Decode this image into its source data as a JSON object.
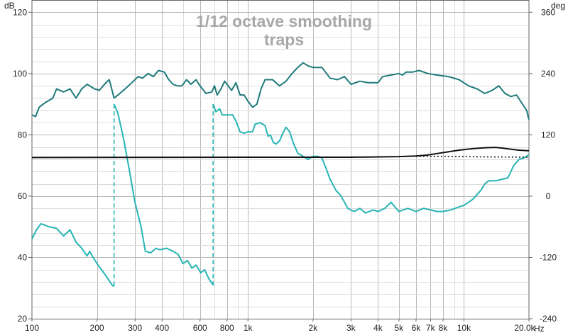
{
  "chart_data": {
    "type": "line",
    "title": [
      "1/12 octave smoothing",
      "traps"
    ],
    "x_scale": "log",
    "xlim": [
      100,
      20000
    ],
    "ylim_left": [
      20,
      124
    ],
    "ylim_right": [
      -240,
      384
    ],
    "left_unit": "dB",
    "right_unit": "deg",
    "x_unit": "Hz",
    "x_ticks": [
      {
        "v": 100,
        "t": "100"
      },
      {
        "v": 200,
        "t": "200"
      },
      {
        "v": 300,
        "t": "300"
      },
      {
        "v": 400,
        "t": "400"
      },
      {
        "v": 600,
        "t": "600"
      },
      {
        "v": 800,
        "t": "800"
      },
      {
        "v": 1000,
        "t": "1k"
      },
      {
        "v": 2000,
        "t": "2k"
      },
      {
        "v": 3000,
        "t": "3k"
      },
      {
        "v": 4000,
        "t": "4k"
      },
      {
        "v": 5000,
        "t": "5k"
      },
      {
        "v": 6000,
        "t": "6k"
      },
      {
        "v": 7000,
        "t": "7k"
      },
      {
        "v": 8000,
        "t": "8k"
      },
      {
        "v": 10000,
        "t": "10k"
      },
      {
        "v": 20000,
        "t": "20.0k"
      }
    ],
    "y_ticks_left": [
      {
        "v": 20,
        "t": "20"
      },
      {
        "v": 40,
        "t": "40"
      },
      {
        "v": 60,
        "t": "60"
      },
      {
        "v": 80,
        "t": "80"
      },
      {
        "v": 100,
        "t": "100"
      },
      {
        "v": 120,
        "t": "120"
      }
    ],
    "y_ticks_right": [
      {
        "v": -240,
        "t": "-240"
      },
      {
        "v": -120,
        "t": "-120"
      },
      {
        "v": 0,
        "t": "0"
      },
      {
        "v": 120,
        "t": "120"
      },
      {
        "v": 240,
        "t": "240"
      },
      {
        "v": 360,
        "t": "360"
      }
    ],
    "grid": true,
    "colors": {
      "spl": "#1f7a7a",
      "phase": "#27b4b4",
      "reference": "#111111",
      "grid_major": "#b8b8b8",
      "grid_minor": "#dcdcdc",
      "axis": "#666666",
      "title": "#a8a8a8"
    },
    "series": [
      {
        "key": "spl",
        "axis": "left",
        "style": "solid",
        "points": [
          [
            100,
            86.5
          ],
          [
            104,
            86
          ],
          [
            108,
            89
          ],
          [
            115,
            90.5
          ],
          [
            125,
            92
          ],
          [
            130,
            95
          ],
          [
            140,
            94
          ],
          [
            150,
            95
          ],
          [
            160,
            92
          ],
          [
            170,
            95
          ],
          [
            180,
            96.5
          ],
          [
            195,
            95
          ],
          [
            205,
            94.5
          ],
          [
            220,
            97
          ],
          [
            228,
            98
          ],
          [
            240,
            92
          ],
          [
            250,
            93
          ],
          [
            270,
            95
          ],
          [
            290,
            97
          ],
          [
            310,
            99
          ],
          [
            325,
            98.5
          ],
          [
            345,
            100
          ],
          [
            365,
            99
          ],
          [
            385,
            101
          ],
          [
            410,
            100.5
          ],
          [
            430,
            98
          ],
          [
            450,
            96.5
          ],
          [
            470,
            96
          ],
          [
            495,
            96
          ],
          [
            520,
            98
          ],
          [
            545,
            96.5
          ],
          [
            575,
            98
          ],
          [
            600,
            96
          ],
          [
            640,
            93.5
          ],
          [
            680,
            94
          ],
          [
            700,
            96
          ],
          [
            720,
            93
          ],
          [
            750,
            95
          ],
          [
            780,
            97.5
          ],
          [
            810,
            96
          ],
          [
            840,
            94.5
          ],
          [
            880,
            97
          ],
          [
            920,
            93
          ],
          [
            960,
            93
          ],
          [
            1000,
            91
          ],
          [
            1050,
            89
          ],
          [
            1100,
            90
          ],
          [
            1150,
            95
          ],
          [
            1200,
            98
          ],
          [
            1300,
            98
          ],
          [
            1400,
            96
          ],
          [
            1500,
            97.5
          ],
          [
            1600,
            100
          ],
          [
            1700,
            102
          ],
          [
            1800,
            103.5
          ],
          [
            1900,
            102.5
          ],
          [
            2000,
            102
          ],
          [
            2200,
            102
          ],
          [
            2400,
            98.5
          ],
          [
            2600,
            98
          ],
          [
            2800,
            99
          ],
          [
            3000,
            96.5
          ],
          [
            3300,
            97.5
          ],
          [
            3600,
            97
          ],
          [
            4000,
            97
          ],
          [
            4200,
            99
          ],
          [
            4600,
            99.5
          ],
          [
            5000,
            100
          ],
          [
            5200,
            99.5
          ],
          [
            5400,
            100.5
          ],
          [
            5800,
            100.5
          ],
          [
            6200,
            101
          ],
          [
            6800,
            100
          ],
          [
            7500,
            99.5
          ],
          [
            8500,
            99
          ],
          [
            9500,
            98
          ],
          [
            10500,
            96
          ],
          [
            11500,
            95
          ],
          [
            12500,
            93.5
          ],
          [
            13500,
            94.5
          ],
          [
            14500,
            96
          ],
          [
            15500,
            93.5
          ],
          [
            16500,
            92.5
          ],
          [
            17500,
            93
          ],
          [
            18500,
            90.5
          ],
          [
            19500,
            88
          ],
          [
            20000,
            85
          ]
        ]
      },
      {
        "key": "phase",
        "axis": "left",
        "style": "solid",
        "points": [
          [
            100,
            46
          ],
          [
            105,
            49
          ],
          [
            110,
            51
          ],
          [
            115,
            50.5
          ],
          [
            120,
            50
          ],
          [
            130,
            49.5
          ],
          [
            140,
            47
          ],
          [
            150,
            49
          ],
          [
            160,
            45
          ],
          [
            170,
            43
          ],
          [
            180,
            40.5
          ],
          [
            185,
            42
          ],
          [
            190,
            40.5
          ],
          [
            200,
            38
          ],
          [
            210,
            36
          ],
          [
            220,
            34
          ],
          [
            235,
            31
          ],
          [
            240,
            30.5
          ]
        ]
      },
      {
        "key": "phase",
        "axis": "left",
        "style": "solid",
        "points": [
          [
            240,
            90
          ],
          [
            250,
            87
          ],
          [
            265,
            79
          ],
          [
            280,
            70
          ],
          [
            300,
            58
          ],
          [
            320,
            50
          ],
          [
            335,
            42
          ],
          [
            355,
            41.5
          ],
          [
            375,
            43
          ],
          [
            390,
            42.5
          ],
          [
            420,
            43
          ],
          [
            450,
            42
          ],
          [
            475,
            41
          ],
          [
            500,
            38
          ],
          [
            525,
            39
          ],
          [
            550,
            36.5
          ],
          [
            575,
            37.5
          ],
          [
            605,
            35
          ],
          [
            630,
            36
          ],
          [
            660,
            33
          ],
          [
            690,
            31
          ]
        ]
      },
      {
        "key": "phase",
        "axis": "left",
        "style": "solid",
        "points": [
          [
            690,
            90
          ],
          [
            710,
            87.5
          ],
          [
            740,
            88.5
          ],
          [
            760,
            86.5
          ],
          [
            800,
            86.5
          ],
          [
            850,
            86.5
          ],
          [
            880,
            84.5
          ],
          [
            920,
            81
          ],
          [
            960,
            80.5
          ],
          [
            1000,
            81
          ],
          [
            1050,
            81
          ],
          [
            1080,
            83.5
          ],
          [
            1140,
            84
          ],
          [
            1200,
            83
          ],
          [
            1240,
            79.5
          ],
          [
            1270,
            80
          ],
          [
            1310,
            77.5
          ],
          [
            1350,
            77
          ],
          [
            1400,
            78
          ],
          [
            1450,
            80.5
          ],
          [
            1500,
            82.5
          ],
          [
            1560,
            81
          ],
          [
            1620,
            77.5
          ],
          [
            1700,
            74
          ],
          [
            1800,
            73
          ],
          [
            1900,
            72
          ],
          [
            2000,
            73
          ],
          [
            2100,
            73
          ],
          [
            2200,
            72.5
          ],
          [
            2300,
            69
          ],
          [
            2400,
            65.5
          ],
          [
            2550,
            62
          ],
          [
            2700,
            60
          ],
          [
            2900,
            56
          ],
          [
            3100,
            55
          ],
          [
            3300,
            56
          ],
          [
            3500,
            54.5
          ],
          [
            3800,
            55.5
          ],
          [
            4000,
            55
          ],
          [
            4300,
            56
          ],
          [
            4600,
            58
          ],
          [
            5000,
            55
          ],
          [
            5500,
            56
          ],
          [
            6000,
            55
          ],
          [
            6500,
            56
          ],
          [
            7000,
            55.5
          ],
          [
            7500,
            55
          ],
          [
            8000,
            55
          ],
          [
            8700,
            55.5
          ],
          [
            9500,
            56.5
          ],
          [
            10000,
            57
          ],
          [
            11000,
            59
          ],
          [
            12000,
            62
          ],
          [
            12500,
            64
          ],
          [
            13000,
            65
          ],
          [
            14000,
            65
          ],
          [
            15000,
            65.5
          ],
          [
            16000,
            66
          ],
          [
            17000,
            70
          ],
          [
            18000,
            72
          ],
          [
            19000,
            72.5
          ],
          [
            20000,
            73.5
          ]
        ]
      },
      {
        "key": "phase",
        "axis": "left",
        "style": "dashed",
        "points": [
          [
            240,
            90
          ],
          [
            240,
            30
          ]
        ]
      },
      {
        "key": "phase",
        "axis": "left",
        "style": "dashed",
        "points": [
          [
            690,
            90
          ],
          [
            690,
            30
          ]
        ]
      },
      {
        "key": "reference",
        "axis": "left",
        "style": "solid",
        "points": [
          [
            100,
            72.6
          ],
          [
            1000,
            72.7
          ],
          [
            3000,
            72.7
          ],
          [
            5000,
            72.9
          ],
          [
            6000,
            73.1
          ],
          [
            6800,
            73.4
          ],
          [
            7500,
            73.9
          ],
          [
            8500,
            74.5
          ],
          [
            9500,
            75
          ],
          [
            11000,
            75.5
          ],
          [
            12500,
            75.8
          ],
          [
            14000,
            75.9
          ],
          [
            15000,
            75.7
          ],
          [
            16500,
            75.3
          ],
          [
            18000,
            75
          ],
          [
            20000,
            74.8
          ]
        ]
      },
      {
        "key": "reference",
        "axis": "left",
        "style": "dotted",
        "points": [
          [
            6000,
            73
          ],
          [
            8000,
            73
          ],
          [
            12000,
            72.8
          ],
          [
            20000,
            72.7
          ]
        ]
      }
    ]
  }
}
